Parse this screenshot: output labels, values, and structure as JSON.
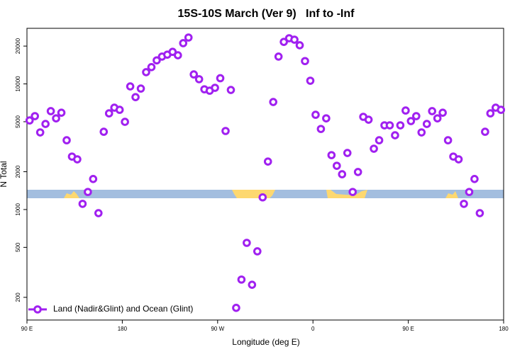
{
  "chart_data": {
    "type": "scatter",
    "title": "15S-10S March (Ver 9)   Inf to -Inf",
    "x_label": "Longitude (deg E)",
    "y_label": "N Total",
    "log_y": true,
    "grid": false,
    "legend_location": "bottom-left",
    "xlim": [
      90,
      540
    ],
    "ylim": [
      132,
      27700
    ],
    "xticks": [
      {
        "value": 90,
        "label": "90 E"
      },
      180,
      {
        "value": 270,
        "label": "90 W"
      },
      {
        "value": 360,
        "label": "0"
      },
      {
        "value": 450,
        "label": "90 E"
      },
      {
        "value": 540,
        "label": "180"
      }
    ],
    "yticks": [
      200,
      500,
      1000,
      2000,
      5000,
      10000,
      20000
    ],
    "series": [
      {
        "name": "Land (Nadir&Glint) and Ocean (Glint)",
        "color": "#a020f0",
        "x": [
          92.5,
          97.5,
          102.5,
          107.5,
          112.5,
          117.5,
          122.5,
          127.5,
          132.5,
          137.5,
          142.5,
          147.5,
          152.5,
          157.5,
          162.5,
          167.5,
          172.5,
          177.5,
          182.5,
          187.5,
          192.5,
          197.5,
          202.5,
          207.5,
          212.5,
          217.5,
          222.5,
          227.5,
          232.5,
          237.5,
          242.5,
          247.5,
          252.5,
          257.5,
          262.5,
          267.5,
          272.5,
          277.5,
          282.5,
          287.5,
          292.5,
          297.5,
          302.5,
          307.5,
          312.5,
          317.5,
          322.5,
          327.5,
          332.5,
          337.5,
          342.5,
          347.5,
          352.5,
          357.5,
          362.5,
          367.5,
          372.5,
          377.5,
          382.5,
          387.5,
          392.5,
          397.5,
          402.5,
          407.5,
          412.5,
          417.5,
          422.5,
          427.5,
          432.5,
          437.5,
          442.5,
          447.5,
          452.5,
          457.5,
          462.5,
          467.5,
          472.5,
          477.5,
          482.5,
          487.5,
          492.5,
          497.5,
          502.5,
          507.5,
          512.5,
          517.5,
          522.5,
          527.5,
          532.5,
          537.5
        ],
        "values": [
          5120,
          5540,
          4110,
          4800,
          6070,
          5320,
          5900,
          3560,
          2640,
          2510,
          1110,
          1380,
          1750,
          936,
          4160,
          5830,
          6470,
          6220,
          4990,
          9550,
          7850,
          9180,
          12400,
          13600,
          15400,
          16500,
          17100,
          18000,
          16900,
          21100,
          23400,
          11900,
          10900,
          9060,
          8830,
          9310,
          11100,
          4220,
          8950,
          165,
          277,
          543,
          252,
          465,
          1250,
          2410,
          7180,
          16500,
          21600,
          23100,
          22500,
          20300,
          15200,
          10600,
          5680,
          4380,
          5320,
          2710,
          2230,
          1910,
          2820,
          1380,
          1990,
          5470,
          5190,
          3050,
          3560,
          4680,
          4680,
          3900,
          4680,
          6140,
          5060,
          5540,
          4110,
          4800,
          6070,
          5320,
          5900,
          3560,
          2640,
          2510,
          1110,
          1380,
          1750,
          936,
          4160,
          5830,
          6470,
          6220
        ]
      }
    ]
  }
}
